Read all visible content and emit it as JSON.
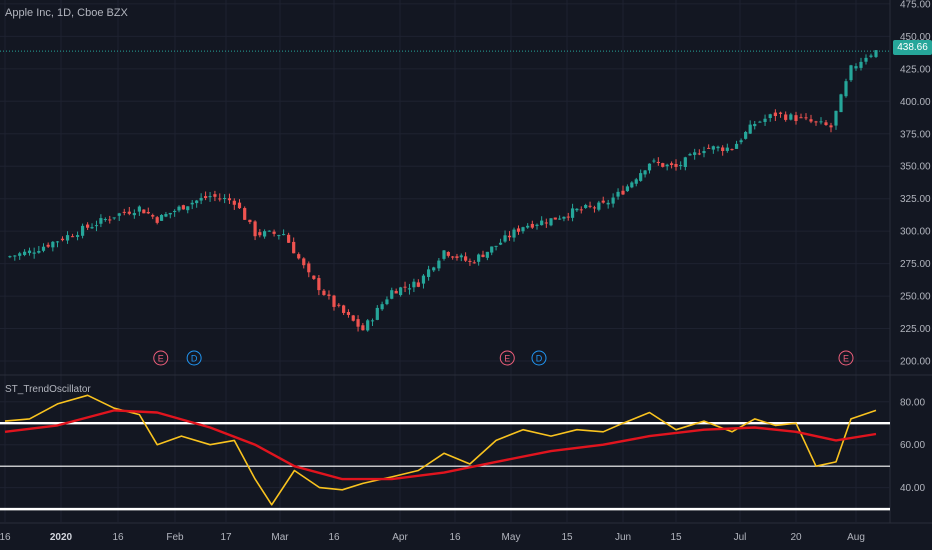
{
  "title": "Apple Inc, 1D, Cboe BZX",
  "indicator_title": "ST_TrendOscillator",
  "last_price_label": "438.66",
  "colors": {
    "background": "#131722",
    "grid": "#1e2230",
    "up": "#26a69a",
    "down": "#ef5350",
    "oscillator": "#f9c31f",
    "signal": "#e0141e",
    "level_line": "#ffffff",
    "axis_text": "#b2b5be",
    "earnings": "#ef5f7b",
    "dividend": "#2196f3"
  },
  "chart_data": [
    {
      "type": "candlestick",
      "panel": "price",
      "y_ticks": [
        200,
        225,
        250,
        275,
        300,
        325,
        350,
        375,
        400,
        425,
        450,
        475
      ],
      "y_tick_labels": [
        "200.00",
        "225.00",
        "250.00",
        "275.00",
        "300.00",
        "325.00",
        "350.00",
        "375.00",
        "400.00",
        "425.00",
        "450.00",
        "475.00"
      ],
      "ylim": [
        190,
        478
      ],
      "last_price": 438.66,
      "x_tick_labels": [
        "16",
        "2020",
        "16",
        "Feb",
        "17",
        "Mar",
        "16",
        "Apr",
        "16",
        "May",
        "15",
        "Jun",
        "15",
        "Jul",
        "20",
        "Aug"
      ],
      "x_tick_dates": [
        "2019-12-16",
        "2020-01-01",
        "2020-01-16",
        "2020-02-01",
        "2020-02-17",
        "2020-03-01",
        "2020-03-16",
        "2020-04-01",
        "2020-04-16",
        "2020-05-01",
        "2020-05-15",
        "2020-06-01",
        "2020-06-15",
        "2020-07-01",
        "2020-07-20",
        "2020-08-01"
      ],
      "candles_approx_close": [
        {
          "date": "2019-12-16",
          "close": 280
        },
        {
          "date": "2019-12-23",
          "close": 284
        },
        {
          "date": "2019-12-31",
          "close": 293
        },
        {
          "date": "2020-01-08",
          "close": 303
        },
        {
          "date": "2020-01-15",
          "close": 312
        },
        {
          "date": "2020-01-22",
          "close": 318
        },
        {
          "date": "2020-01-27",
          "close": 309
        },
        {
          "date": "2020-02-05",
          "close": 321
        },
        {
          "date": "2020-02-12",
          "close": 327
        },
        {
          "date": "2020-02-19",
          "close": 323
        },
        {
          "date": "2020-02-24",
          "close": 298
        },
        {
          "date": "2020-03-02",
          "close": 298
        },
        {
          "date": "2020-03-09",
          "close": 266
        },
        {
          "date": "2020-03-16",
          "close": 243
        },
        {
          "date": "2020-03-23",
          "close": 224
        },
        {
          "date": "2020-03-30",
          "close": 254
        },
        {
          "date": "2020-04-06",
          "close": 260
        },
        {
          "date": "2020-04-13",
          "close": 285
        },
        {
          "date": "2020-04-20",
          "close": 276
        },
        {
          "date": "2020-04-27",
          "close": 289
        },
        {
          "date": "2020-05-04",
          "close": 304
        },
        {
          "date": "2020-05-11",
          "close": 309
        },
        {
          "date": "2020-05-18",
          "close": 316
        },
        {
          "date": "2020-05-26",
          "close": 320
        },
        {
          "date": "2020-06-01",
          "close": 331
        },
        {
          "date": "2020-06-08",
          "close": 353
        },
        {
          "date": "2020-06-15",
          "close": 349
        },
        {
          "date": "2020-06-22",
          "close": 364
        },
        {
          "date": "2020-06-29",
          "close": 364
        },
        {
          "date": "2020-07-06",
          "close": 383
        },
        {
          "date": "2020-07-13",
          "close": 390
        },
        {
          "date": "2020-07-20",
          "close": 387
        },
        {
          "date": "2020-07-27",
          "close": 380
        },
        {
          "date": "2020-07-31",
          "close": 425
        },
        {
          "date": "2020-08-03",
          "close": 435
        },
        {
          "date": "2020-08-05",
          "close": 438.66
        }
      ],
      "events": [
        {
          "label": "E",
          "type": "earnings",
          "date": "2020-01-28"
        },
        {
          "label": "D",
          "type": "dividend",
          "date": "2020-02-07"
        },
        {
          "label": "E",
          "type": "earnings",
          "date": "2020-04-30"
        },
        {
          "label": "D",
          "type": "dividend",
          "date": "2020-05-08"
        },
        {
          "label": "E",
          "type": "earnings",
          "date": "2020-07-30"
        }
      ]
    },
    {
      "type": "line",
      "panel": "indicator",
      "y_ticks": [
        40,
        60,
        80
      ],
      "y_tick_labels": [
        "40.00",
        "60.00",
        "80.00"
      ],
      "ylim": [
        24,
        92
      ],
      "levels": [
        30,
        50,
        70
      ],
      "series": [
        {
          "name": "",
          "color": "#f9c31f",
          "x": [
            "2019-12-16",
            "2019-12-23",
            "2019-12-31",
            "2020-01-08",
            "2020-01-15",
            "2020-01-22",
            "2020-01-27",
            "2020-02-03",
            "2020-02-12",
            "2020-02-19",
            "2020-02-24",
            "2020-02-28",
            "2020-03-05",
            "2020-03-12",
            "2020-03-18",
            "2020-03-23",
            "2020-03-30",
            "2020-04-06",
            "2020-04-13",
            "2020-04-20",
            "2020-04-27",
            "2020-05-04",
            "2020-05-11",
            "2020-05-18",
            "2020-05-26",
            "2020-06-01",
            "2020-06-08",
            "2020-06-15",
            "2020-06-22",
            "2020-06-29",
            "2020-07-06",
            "2020-07-13",
            "2020-07-20",
            "2020-07-24",
            "2020-07-28",
            "2020-07-31",
            "2020-08-05"
          ],
          "values": [
            71,
            72,
            79,
            83,
            77,
            74,
            60,
            64,
            60,
            62,
            44,
            32,
            48,
            40,
            39,
            42,
            45,
            48,
            56,
            51,
            62,
            67,
            64,
            67,
            66,
            70,
            75,
            67,
            71,
            66,
            72,
            69,
            70,
            50,
            52,
            72,
            76
          ]
        },
        {
          "name": "",
          "color": "#e0141e",
          "x": [
            "2019-12-16",
            "2019-12-31",
            "2020-01-15",
            "2020-01-27",
            "2020-02-12",
            "2020-02-24",
            "2020-03-05",
            "2020-03-18",
            "2020-03-30",
            "2020-04-13",
            "2020-04-27",
            "2020-05-11",
            "2020-05-26",
            "2020-06-08",
            "2020-06-22",
            "2020-07-06",
            "2020-07-20",
            "2020-07-28",
            "2020-08-05"
          ],
          "values": [
            66,
            69,
            76,
            75,
            68,
            60,
            50,
            44,
            44,
            47,
            52,
            57,
            60,
            64,
            67,
            68,
            66,
            62,
            65
          ]
        }
      ]
    }
  ]
}
